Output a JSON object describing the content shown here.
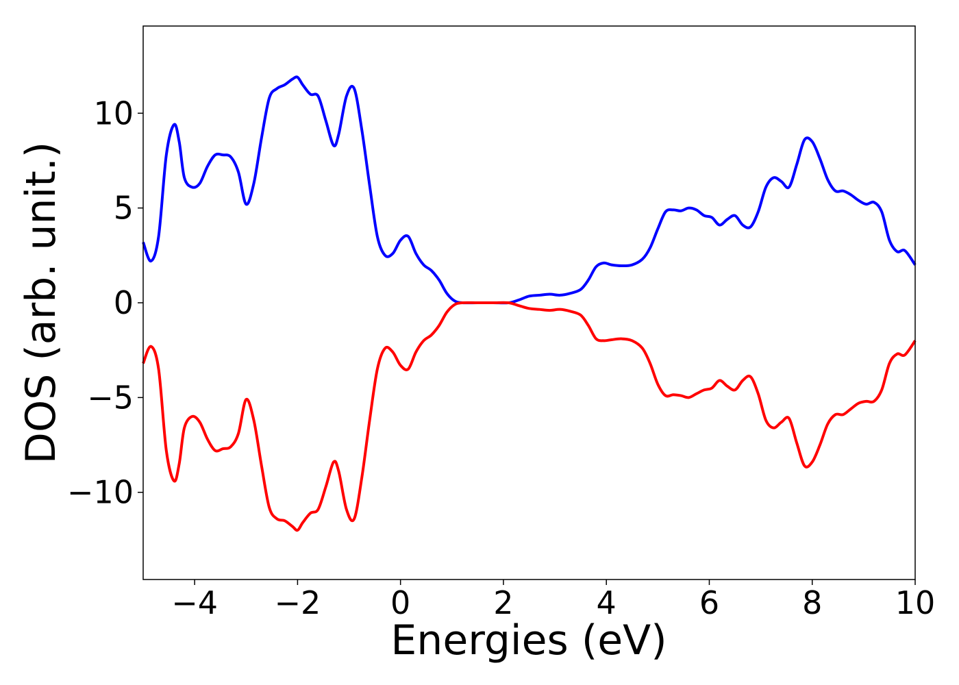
{
  "chart_data": {
    "type": "line",
    "title": "",
    "xlabel": "Energies (eV)",
    "ylabel": "DOS (arb. unit.)",
    "xlim": [
      -5,
      10
    ],
    "ylim": [
      -14.6,
      14.6
    ],
    "xticks": [
      -4,
      -2,
      0,
      2,
      4,
      6,
      8,
      10
    ],
    "xtick_labels": [
      "−4",
      "−2",
      "0",
      "2",
      "4",
      "6",
      "8",
      "10"
    ],
    "yticks": [
      -10,
      -5,
      0,
      5,
      10
    ],
    "ytick_labels": [
      "−10",
      "−5",
      "0",
      "5",
      "10"
    ],
    "grid": false,
    "legend": "none",
    "series": [
      {
        "color": "#0000ff",
        "x": [
          -5.0,
          -4.85,
          -4.7,
          -4.55,
          -4.4,
          -4.3,
          -4.2,
          -4.05,
          -3.9,
          -3.75,
          -3.6,
          -3.45,
          -3.3,
          -3.15,
          -3.0,
          -2.85,
          -2.7,
          -2.55,
          -2.4,
          -2.25,
          -2.1,
          -2.0,
          -1.9,
          -1.75,
          -1.6,
          -1.45,
          -1.3,
          -1.2,
          -1.05,
          -0.9,
          -0.75,
          -0.6,
          -0.45,
          -0.3,
          -0.15,
          0.0,
          0.15,
          0.3,
          0.45,
          0.6,
          0.75,
          0.9,
          1.05,
          1.2,
          1.5,
          1.8,
          2.1,
          2.3,
          2.5,
          2.7,
          2.9,
          3.1,
          3.3,
          3.5,
          3.65,
          3.8,
          3.95,
          4.1,
          4.3,
          4.5,
          4.7,
          4.85,
          5.0,
          5.15,
          5.3,
          5.45,
          5.6,
          5.75,
          5.9,
          6.05,
          6.2,
          6.35,
          6.5,
          6.65,
          6.8,
          6.95,
          7.1,
          7.25,
          7.4,
          7.55,
          7.7,
          7.85,
          8.0,
          8.15,
          8.3,
          8.45,
          8.6,
          8.75,
          8.9,
          9.05,
          9.2,
          9.35,
          9.5,
          9.65,
          9.8,
          10.0
        ],
        "y": [
          3.2,
          2.2,
          3.5,
          7.8,
          9.4,
          8.5,
          6.6,
          6.1,
          6.3,
          7.2,
          7.8,
          7.8,
          7.7,
          6.9,
          5.2,
          6.3,
          8.7,
          10.8,
          11.3,
          11.5,
          11.8,
          11.9,
          11.5,
          11.0,
          10.9,
          9.6,
          8.3,
          8.9,
          10.9,
          11.3,
          9.1,
          6.2,
          3.5,
          2.5,
          2.6,
          3.3,
          3.5,
          2.6,
          2.0,
          1.7,
          1.2,
          0.5,
          0.1,
          0.0,
          0.0,
          0.0,
          0.0,
          0.15,
          0.35,
          0.4,
          0.45,
          0.4,
          0.5,
          0.7,
          1.2,
          1.9,
          2.1,
          2.0,
          1.95,
          2.0,
          2.3,
          2.9,
          3.9,
          4.8,
          4.9,
          4.85,
          5.0,
          4.9,
          4.6,
          4.5,
          4.1,
          4.4,
          4.6,
          4.1,
          4.0,
          4.8,
          6.1,
          6.6,
          6.4,
          6.1,
          7.3,
          8.6,
          8.5,
          7.6,
          6.5,
          5.9,
          5.9,
          5.7,
          5.4,
          5.2,
          5.3,
          4.8,
          3.3,
          2.7,
          2.75,
          2.0
        ]
      },
      {
        "color": "#ff0000",
        "x": [
          -5.0,
          -4.85,
          -4.7,
          -4.55,
          -4.4,
          -4.3,
          -4.2,
          -4.05,
          -3.9,
          -3.75,
          -3.6,
          -3.45,
          -3.3,
          -3.15,
          -3.0,
          -2.85,
          -2.7,
          -2.55,
          -2.4,
          -2.25,
          -2.1,
          -2.0,
          -1.9,
          -1.75,
          -1.6,
          -1.45,
          -1.3,
          -1.2,
          -1.05,
          -0.9,
          -0.75,
          -0.6,
          -0.45,
          -0.3,
          -0.15,
          0.0,
          0.15,
          0.3,
          0.45,
          0.6,
          0.75,
          0.9,
          1.05,
          1.2,
          1.5,
          1.8,
          2.1,
          2.3,
          2.5,
          2.7,
          2.9,
          3.1,
          3.3,
          3.5,
          3.65,
          3.8,
          3.95,
          4.1,
          4.3,
          4.5,
          4.7,
          4.85,
          5.0,
          5.15,
          5.3,
          5.45,
          5.6,
          5.75,
          5.9,
          6.05,
          6.2,
          6.35,
          6.5,
          6.65,
          6.8,
          6.95,
          7.1,
          7.25,
          7.4,
          7.55,
          7.7,
          7.85,
          8.0,
          8.15,
          8.3,
          8.45,
          8.6,
          8.75,
          8.9,
          9.05,
          9.2,
          9.35,
          9.5,
          9.65,
          9.8,
          10.0
        ],
        "y": [
          -3.2,
          -2.3,
          -3.5,
          -7.8,
          -9.4,
          -8.5,
          -6.6,
          -6.0,
          -6.3,
          -7.2,
          -7.8,
          -7.7,
          -7.6,
          -6.9,
          -5.1,
          -6.2,
          -8.6,
          -10.8,
          -11.4,
          -11.5,
          -11.8,
          -12.0,
          -11.6,
          -11.1,
          -10.9,
          -9.7,
          -8.4,
          -8.9,
          -10.9,
          -11.4,
          -9.2,
          -6.2,
          -3.5,
          -2.4,
          -2.6,
          -3.3,
          -3.5,
          -2.6,
          -2.0,
          -1.7,
          -1.2,
          -0.5,
          -0.1,
          0.0,
          0.0,
          0.0,
          0.0,
          -0.15,
          -0.3,
          -0.35,
          -0.4,
          -0.35,
          -0.45,
          -0.65,
          -1.2,
          -1.9,
          -2.0,
          -1.95,
          -1.9,
          -2.0,
          -2.4,
          -3.2,
          -4.3,
          -4.9,
          -4.85,
          -4.9,
          -5.0,
          -4.8,
          -4.6,
          -4.5,
          -4.1,
          -4.4,
          -4.6,
          -4.1,
          -3.9,
          -4.8,
          -6.2,
          -6.6,
          -6.3,
          -6.1,
          -7.4,
          -8.6,
          -8.4,
          -7.5,
          -6.4,
          -5.9,
          -5.9,
          -5.6,
          -5.3,
          -5.2,
          -5.2,
          -4.6,
          -3.2,
          -2.7,
          -2.75,
          -2.0
        ]
      }
    ]
  }
}
